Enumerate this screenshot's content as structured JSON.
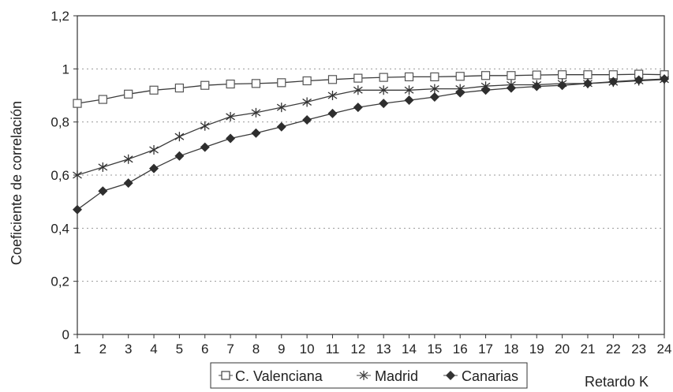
{
  "chart_data": {
    "type": "line",
    "title": "",
    "xlabel": "Retardo K",
    "ylabel": "Coeficiente de correlación",
    "x": [
      1,
      2,
      3,
      4,
      5,
      6,
      7,
      8,
      9,
      10,
      11,
      12,
      13,
      14,
      15,
      16,
      17,
      18,
      19,
      20,
      21,
      22,
      23,
      24
    ],
    "ylim": [
      0,
      1.2
    ],
    "yticks": [
      "0",
      "0,2",
      "0,4",
      "0,6",
      "0,8",
      "1",
      "1,2"
    ],
    "ytick_values": [
      0,
      0.2,
      0.4,
      0.6,
      0.8,
      1.0,
      1.2
    ],
    "xticks": [
      "1",
      "2",
      "3",
      "4",
      "5",
      "6",
      "7",
      "8",
      "9",
      "10",
      "11",
      "12",
      "13",
      "14",
      "15",
      "16",
      "17",
      "18",
      "19",
      "20",
      "21",
      "22",
      "23",
      "24"
    ],
    "grid": "horizontal dotted",
    "legend_position": "bottom",
    "series": [
      {
        "name": "C. Valenciana",
        "marker": "square-open",
        "values": [
          0.87,
          0.885,
          0.905,
          0.92,
          0.928,
          0.938,
          0.943,
          0.945,
          0.948,
          0.955,
          0.96,
          0.965,
          0.968,
          0.97,
          0.97,
          0.972,
          0.975,
          0.975,
          0.977,
          0.978,
          0.978,
          0.978,
          0.98,
          0.978
        ]
      },
      {
        "name": "Madrid",
        "marker": "star",
        "values": [
          0.6,
          0.63,
          0.66,
          0.695,
          0.745,
          0.785,
          0.82,
          0.835,
          0.855,
          0.875,
          0.9,
          0.92,
          0.92,
          0.92,
          0.925,
          0.925,
          0.935,
          0.94,
          0.94,
          0.945,
          0.945,
          0.95,
          0.955,
          0.96
        ]
      },
      {
        "name": "Canarias",
        "marker": "diamond-filled",
        "values": [
          0.47,
          0.54,
          0.57,
          0.625,
          0.672,
          0.705,
          0.738,
          0.758,
          0.782,
          0.808,
          0.832,
          0.855,
          0.87,
          0.882,
          0.894,
          0.91,
          0.92,
          0.928,
          0.934,
          0.938,
          0.945,
          0.952,
          0.958,
          0.962
        ]
      }
    ]
  }
}
